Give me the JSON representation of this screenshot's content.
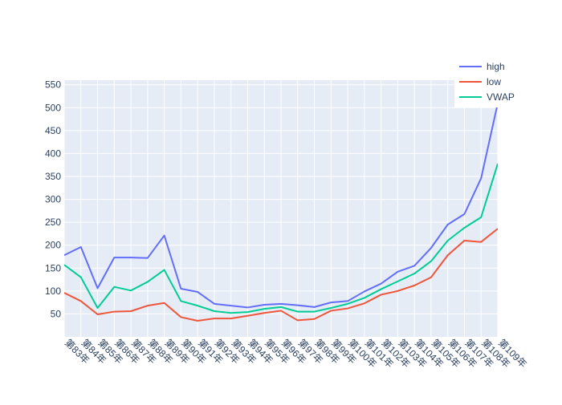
{
  "chart_data": {
    "type": "line",
    "title": "",
    "xlabel": "",
    "ylabel": "",
    "categories": [
      "第83年",
      "第84年",
      "第85年",
      "第86年",
      "第87年",
      "第88年",
      "第89年",
      "第90年",
      "第91年",
      "第92年",
      "第93年",
      "第94年",
      "第95年",
      "第96年",
      "第97年",
      "第98年",
      "第99年",
      "第100年",
      "第101年",
      "第102年",
      "第103年",
      "第104年",
      "第105年",
      "第106年",
      "第107年",
      "第108年",
      "第109年"
    ],
    "ylim": [
      0,
      560
    ],
    "yticks": [
      50,
      100,
      150,
      200,
      250,
      300,
      350,
      400,
      450,
      500,
      550
    ],
    "grid": true,
    "legend_position": "top-right",
    "series": [
      {
        "name": "high",
        "color": "#636efa",
        "values": [
          178,
          196,
          106,
          173,
          173,
          172,
          221,
          105,
          98,
          72,
          68,
          64,
          70,
          72,
          69,
          65,
          75,
          78,
          99,
          116,
          142,
          155,
          194,
          245,
          268,
          346,
          510
        ]
      },
      {
        "name": "low",
        "color": "#ef553b",
        "values": [
          96,
          78,
          49,
          55,
          56,
          68,
          74,
          43,
          35,
          40,
          40,
          46,
          52,
          57,
          36,
          39,
          57,
          62,
          73,
          92,
          100,
          112,
          130,
          178,
          210,
          207,
          236
        ]
      },
      {
        "name": "VWAP",
        "color": "#00cc96",
        "values": [
          157,
          130,
          63,
          109,
          101,
          120,
          146,
          78,
          68,
          56,
          52,
          54,
          61,
          65,
          55,
          55,
          63,
          72,
          85,
          104,
          121,
          138,
          165,
          210,
          238,
          261,
          378
        ]
      }
    ]
  }
}
